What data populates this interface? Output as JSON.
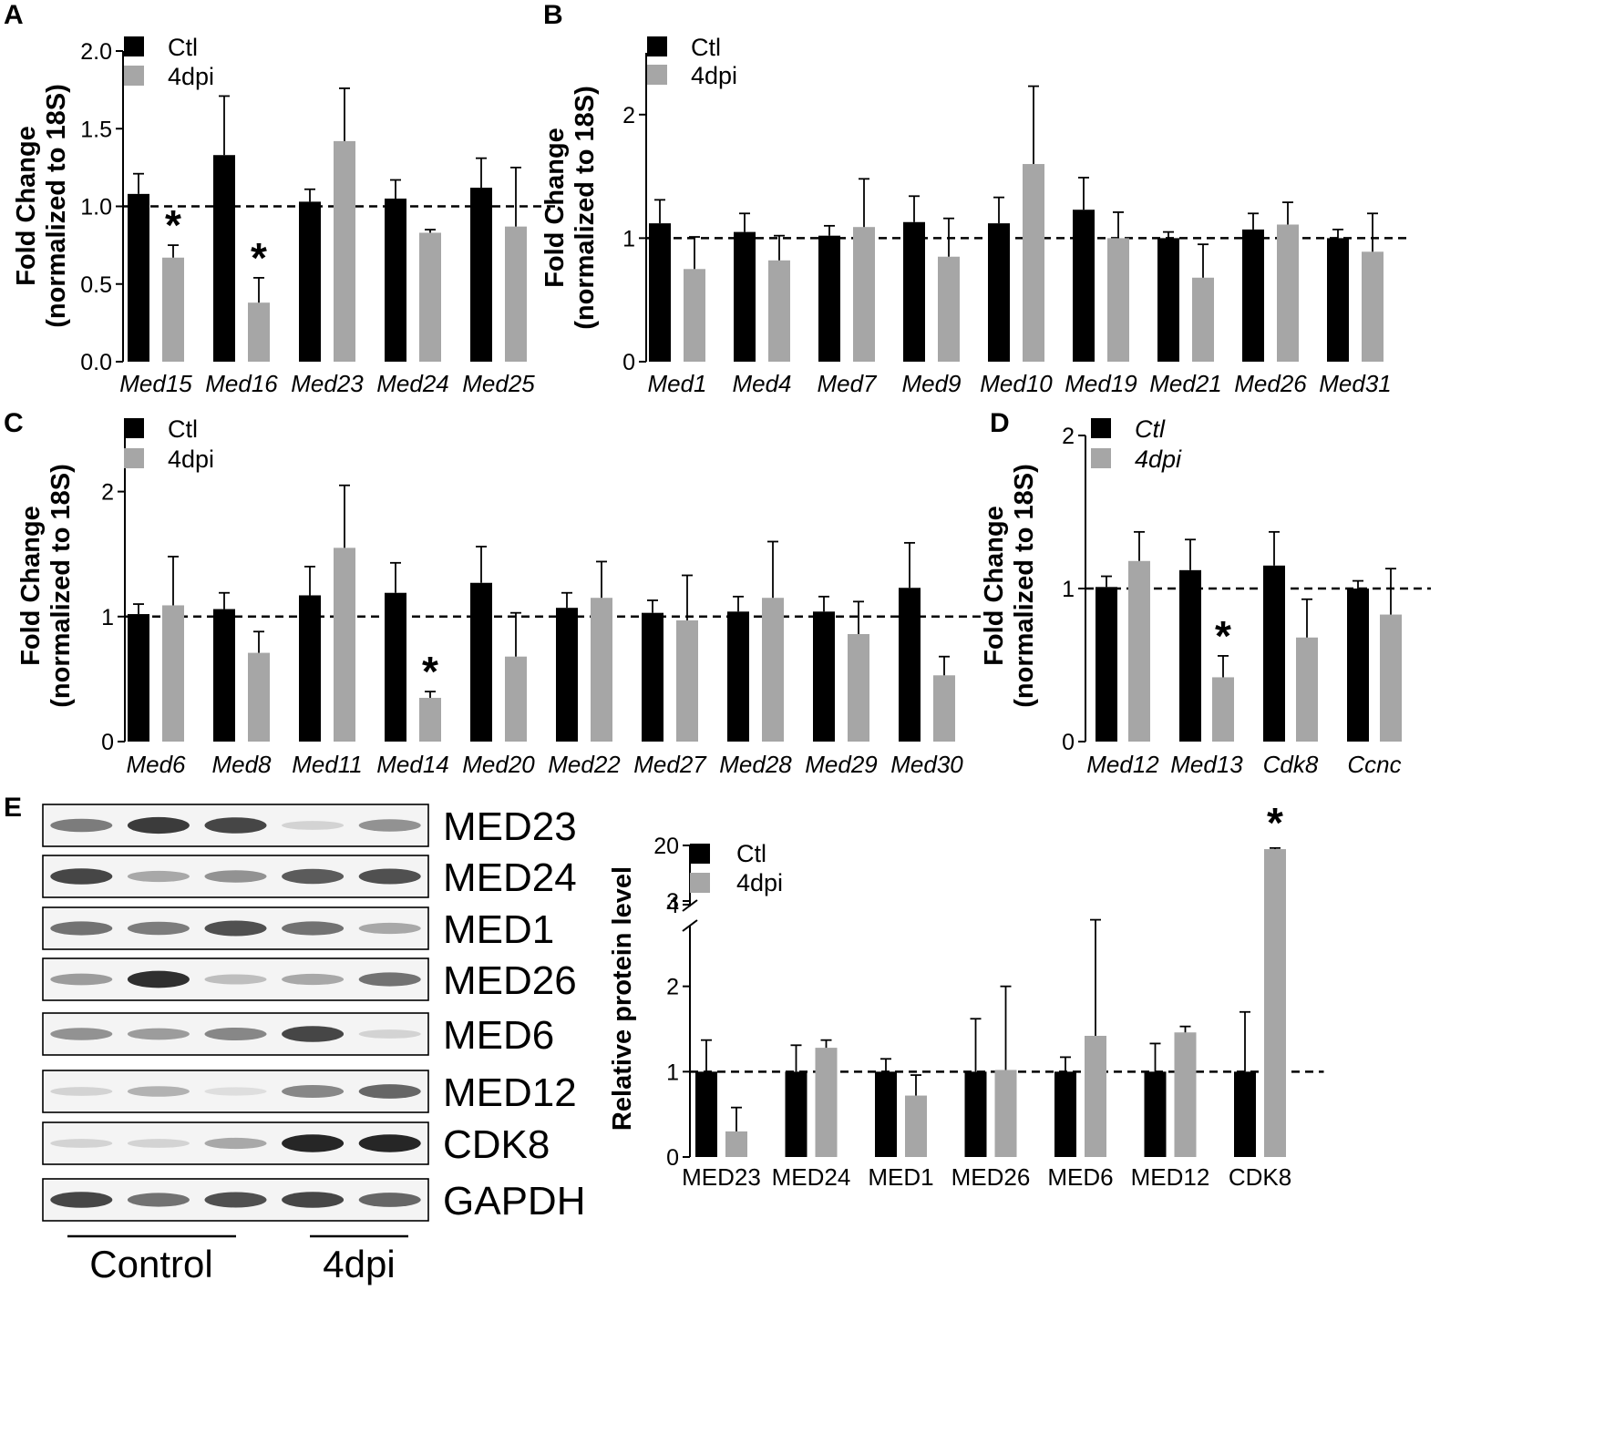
{
  "colors": {
    "ctl": "#000000",
    "dpi4": "#a6a6a6",
    "band": "#1a1a1a"
  },
  "chart_data": [
    {
      "panel": "A",
      "type": "bar",
      "ylabel": [
        "Fold Change",
        "(normalized to 18S)"
      ],
      "categories": [
        "Med15",
        "Med16",
        "Med23",
        "Med24",
        "Med25"
      ],
      "ylim": [
        0,
        2.0
      ],
      "yticks": [
        "0.0",
        "0.5",
        "1.0",
        "1.5",
        "2.0"
      ],
      "reference_line": 1,
      "series": [
        {
          "name": "Ctl",
          "values": [
            1.08,
            1.33,
            1.03,
            1.05,
            1.12
          ],
          "errors": [
            0.13,
            0.38,
            0.08,
            0.12,
            0.19
          ]
        },
        {
          "name": "4dpi",
          "values": [
            0.67,
            0.38,
            1.42,
            0.83,
            0.87
          ],
          "errors": [
            0.08,
            0.16,
            0.34,
            0.02,
            0.38
          ]
        }
      ],
      "significant": [
        "Med15",
        "Med16"
      ],
      "star": "*"
    },
    {
      "panel": "B",
      "type": "bar",
      "ylabel": [
        "Fold Change",
        "(normalized to 18S)"
      ],
      "categories": [
        "Med1",
        "Med4",
        "Med7",
        "Med9",
        "Med10",
        "Med19",
        "Med21",
        "Med26",
        "Med31"
      ],
      "ylim": [
        0,
        2.5
      ],
      "yticks": [
        "0",
        "1",
        "2"
      ],
      "reference_line": 1,
      "series": [
        {
          "name": "Ctl",
          "values": [
            1.12,
            1.05,
            1.02,
            1.13,
            1.12,
            1.23,
            1.0,
            1.07,
            1.0
          ],
          "errors": [
            0.19,
            0.15,
            0.08,
            0.21,
            0.21,
            0.26,
            0.05,
            0.13,
            0.07
          ]
        },
        {
          "name": "4dpi",
          "values": [
            0.75,
            0.82,
            1.09,
            0.85,
            1.6,
            1.0,
            0.68,
            1.11,
            0.89
          ],
          "errors": [
            0.26,
            0.2,
            0.39,
            0.31,
            0.63,
            0.21,
            0.27,
            0.18,
            0.31
          ]
        }
      ]
    },
    {
      "panel": "C",
      "type": "bar",
      "ylabel": [
        "Fold Change",
        "(normalized to 18S)"
      ],
      "categories": [
        "Med6",
        "Med8",
        "Med11",
        "Med14",
        "Med20",
        "Med22",
        "Med27",
        "Med28",
        "Med29",
        "Med30"
      ],
      "ylim": [
        0,
        2.5
      ],
      "yticks": [
        "0",
        "1",
        "2"
      ],
      "reference_line": 1,
      "series": [
        {
          "name": "Ctl",
          "values": [
            1.02,
            1.06,
            1.17,
            1.19,
            1.27,
            1.07,
            1.03,
            1.04,
            1.04,
            1.23
          ],
          "errors": [
            0.08,
            0.13,
            0.23,
            0.24,
            0.29,
            0.12,
            0.1,
            0.12,
            0.12,
            0.36
          ]
        },
        {
          "name": "4dpi",
          "values": [
            1.09,
            0.71,
            1.55,
            0.35,
            0.68,
            1.15,
            0.97,
            1.15,
            0.86,
            0.53
          ],
          "errors": [
            0.39,
            0.17,
            0.5,
            0.05,
            0.35,
            0.29,
            0.36,
            0.45,
            0.26,
            0.15
          ]
        }
      ],
      "significant": [
        "Med14"
      ],
      "star": "*"
    },
    {
      "panel": "D",
      "type": "bar",
      "ylabel": [
        "Fold Change",
        "(normalized to 18S)"
      ],
      "categories": [
        "Med12",
        "Med13",
        "Cdk8",
        "Ccnc"
      ],
      "ylim": [
        0,
        2
      ],
      "yticks": [
        "0",
        "1",
        "2"
      ],
      "reference_line": 1,
      "series": [
        {
          "name": "Ctl",
          "values": [
            1.01,
            1.12,
            1.15,
            1.0
          ],
          "errors": [
            0.07,
            0.2,
            0.22,
            0.05
          ]
        },
        {
          "name": "4dpi",
          "values": [
            1.18,
            0.42,
            0.68,
            0.83
          ],
          "errors": [
            0.19,
            0.14,
            0.25,
            0.3
          ]
        }
      ],
      "significant": [
        "Med13"
      ],
      "star": "*"
    },
    {
      "panel": "E",
      "type": "bar",
      "ylabel": "Relative protein level",
      "categories": [
        "MED23",
        "MED24",
        "MED1",
        "MED26",
        "MED6",
        "MED12",
        "CDK8"
      ],
      "ylim_lower": [
        0,
        3
      ],
      "ylim_upper": [
        4,
        20
      ],
      "yticks": [
        "0",
        "1",
        "2",
        "3",
        "4",
        "20"
      ],
      "reference_line": 1,
      "series": [
        {
          "name": "Ctl",
          "values": [
            1.0,
            1.0,
            1.0,
            1.0,
            1.0,
            1.0,
            1.0
          ],
          "errors": [
            0.37,
            0.31,
            0.15,
            0.62,
            0.17,
            0.33,
            0.7
          ]
        },
        {
          "name": "4dpi",
          "values": [
            0.3,
            1.28,
            0.72,
            1.02,
            1.42,
            1.46,
            19.0
          ],
          "errors": [
            0.28,
            0.09,
            0.24,
            0.98,
            1.36,
            0.07,
            0.3
          ]
        }
      ],
      "significant": [
        "CDK8"
      ],
      "star": "*"
    }
  ],
  "western_blot": {
    "panel": "E",
    "bands": [
      {
        "label": "MED23",
        "intensity": [
          0.55,
          0.85,
          0.8,
          0.15,
          0.45
        ]
      },
      {
        "label": "MED24",
        "intensity": [
          0.8,
          0.35,
          0.45,
          0.7,
          0.75
        ]
      },
      {
        "label": "MED1",
        "intensity": [
          0.6,
          0.55,
          0.75,
          0.6,
          0.35
        ]
      },
      {
        "label": "MED26",
        "intensity": [
          0.4,
          0.9,
          0.25,
          0.35,
          0.6
        ]
      },
      {
        "label": "MED6",
        "intensity": [
          0.45,
          0.4,
          0.5,
          0.8,
          0.15
        ]
      },
      {
        "label": "MED12",
        "intensity": [
          0.15,
          0.3,
          0.1,
          0.5,
          0.65
        ]
      },
      {
        "label": "CDK8",
        "intensity": [
          0.15,
          0.15,
          0.35,
          0.95,
          0.95
        ]
      },
      {
        "label": "GAPDH",
        "intensity": [
          0.8,
          0.6,
          0.75,
          0.8,
          0.65
        ]
      }
    ],
    "groups": [
      {
        "label": "Control",
        "lanes": [
          0,
          1
        ]
      },
      {
        "label": "4dpi",
        "lanes": [
          3,
          4
        ]
      }
    ]
  },
  "panel_letters": [
    "A",
    "B",
    "C",
    "D",
    "E"
  ],
  "legend": {
    "ctl": "Ctl",
    "dpi4": "4dpi"
  }
}
